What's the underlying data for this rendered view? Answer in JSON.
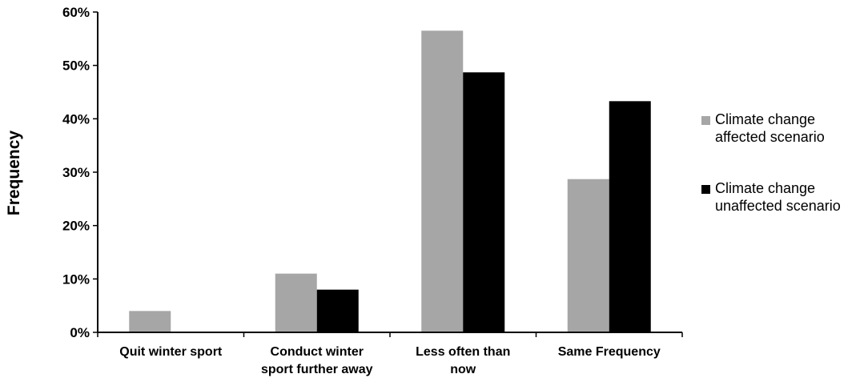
{
  "chart_data": {
    "type": "bar",
    "ylabel": "Frequency",
    "xlabel": "",
    "ylim": [
      0,
      60
    ],
    "y_ticks": [
      "0%",
      "10%",
      "20%",
      "30%",
      "40%",
      "50%",
      "60%"
    ],
    "y_tick_values": [
      0,
      10,
      20,
      30,
      40,
      50,
      60
    ],
    "categories": [
      [
        "Quit winter sport"
      ],
      [
        "Conduct winter",
        "sport further away"
      ],
      [
        "Less often than",
        "now"
      ],
      [
        "Same Frequency"
      ]
    ],
    "series": [
      {
        "name": [
          "Climate change",
          "affected scenario"
        ],
        "color": "#a6a6a6",
        "values": [
          4,
          11,
          56.5,
          28.7
        ]
      },
      {
        "name": [
          "Climate change",
          "unaffected scenario"
        ],
        "color": "#000000",
        "values": [
          0,
          8,
          48.7,
          43.3
        ]
      }
    ],
    "grid": false,
    "legend_position": "right"
  }
}
